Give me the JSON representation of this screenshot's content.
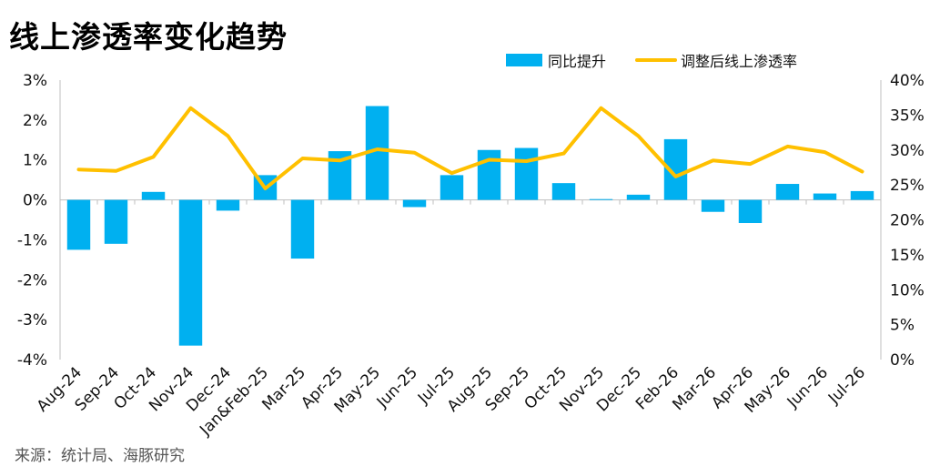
{
  "title": "线上渗透率变化趋势",
  "source": "来源：统计局、海豚研究",
  "colors": {
    "bar": "#00b0f0",
    "line": "#ffc000",
    "axis": "#bfbfbf"
  },
  "chart_data": {
    "type": "bar+line",
    "categories": [
      "Aug-24",
      "Sep-24",
      "Oct-24",
      "Nov-24",
      "Dec-24",
      "Jan&Feb-25",
      "Mar-25",
      "Apr-25",
      "May-25",
      "Jun-25",
      "Jul-25",
      "Aug-25",
      "Sep-25",
      "Oct-25",
      "Nov-25",
      "Dec-25",
      "Feb-26",
      "Mar-26",
      "Apr-26",
      "May-26",
      "Jun-26",
      "Jul-26"
    ],
    "series": [
      {
        "name": "同比提升",
        "type": "bar",
        "axis": "left",
        "values": [
          -1.25,
          -1.1,
          0.2,
          -3.65,
          -0.27,
          0.62,
          -1.47,
          1.22,
          2.35,
          -0.18,
          0.62,
          1.25,
          1.3,
          0.42,
          0.02,
          0.13,
          1.52,
          -0.3,
          -0.58,
          0.4,
          0.16,
          0.22
        ]
      },
      {
        "name": "调整后线上渗透率",
        "type": "line",
        "axis": "right",
        "values": [
          27.2,
          27.0,
          29.0,
          36.0,
          32.0,
          24.5,
          28.8,
          28.5,
          30.1,
          29.6,
          26.7,
          28.6,
          28.4,
          29.5,
          36.0,
          32.0,
          26.2,
          28.5,
          28.0,
          30.5,
          29.7,
          26.9
        ]
      }
    ],
    "y_left": {
      "min": -4,
      "max": 3,
      "ticks": [
        "-4%",
        "-3%",
        "-2%",
        "-1%",
        "0%",
        "1%",
        "2%",
        "3%"
      ]
    },
    "y_right": {
      "min": 0,
      "max": 40,
      "ticks": [
        "0%",
        "5%",
        "10%",
        "15%",
        "20%",
        "25%",
        "30%",
        "35%",
        "40%"
      ]
    },
    "legend_position": "top-right",
    "grid": false
  }
}
